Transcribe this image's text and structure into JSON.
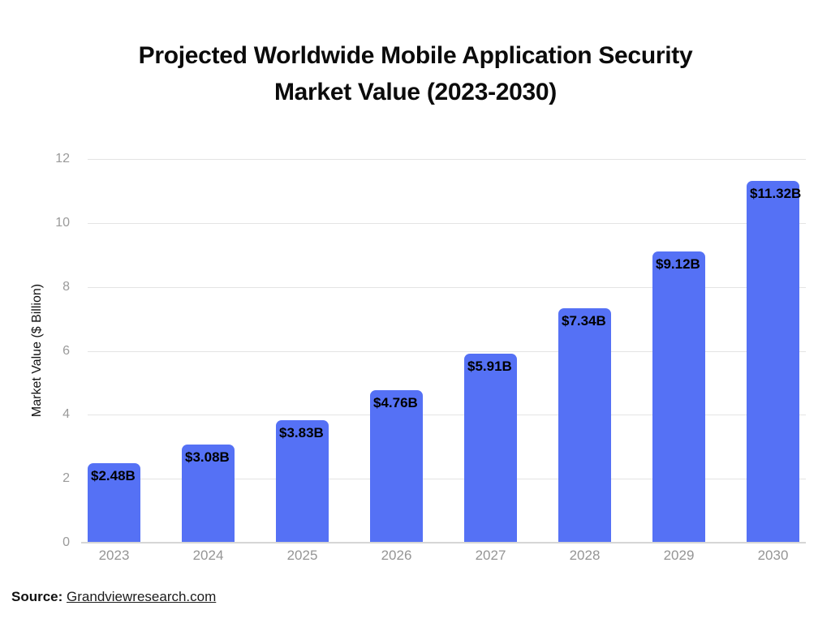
{
  "title": {
    "lines": [
      "Projected Worldwide Mobile Application Security",
      "Market Value (2023-2030)"
    ],
    "full": "Projected Worldwide Mobile Application Security Market Value (2023-2030)"
  },
  "chart_data": {
    "type": "bar",
    "title": "Projected Worldwide Mobile Application Security Market Value (2023-2030)",
    "categories": [
      "2023",
      "2024",
      "2025",
      "2026",
      "2027",
      "2028",
      "2029",
      "2030"
    ],
    "values": [
      2.48,
      3.08,
      3.83,
      4.76,
      5.91,
      7.34,
      9.12,
      11.32
    ],
    "bar_labels": [
      "$2.48B",
      "$3.08B",
      "$3.83B",
      "$4.76B",
      "$5.91B",
      "$7.34B",
      "$9.12B",
      "$11.32B"
    ],
    "xlabel": "",
    "ylabel": "Market Value ($ Billion)",
    "ylim": [
      0,
      12
    ],
    "yticks": [
      0,
      2,
      4,
      6,
      8,
      10,
      12
    ],
    "grid": "horizontal",
    "legend": "none"
  },
  "source": {
    "prefix": "Source:",
    "link_text": "Grandviewresearch.com"
  },
  "colors": {
    "bar": "#5571F5",
    "gridline": "#E4E4E4",
    "axis_line": "#D6D6D6",
    "tick_text": "#9A9A9A",
    "title_text": "#0B0B0B",
    "value_label_text": "#000000"
  }
}
